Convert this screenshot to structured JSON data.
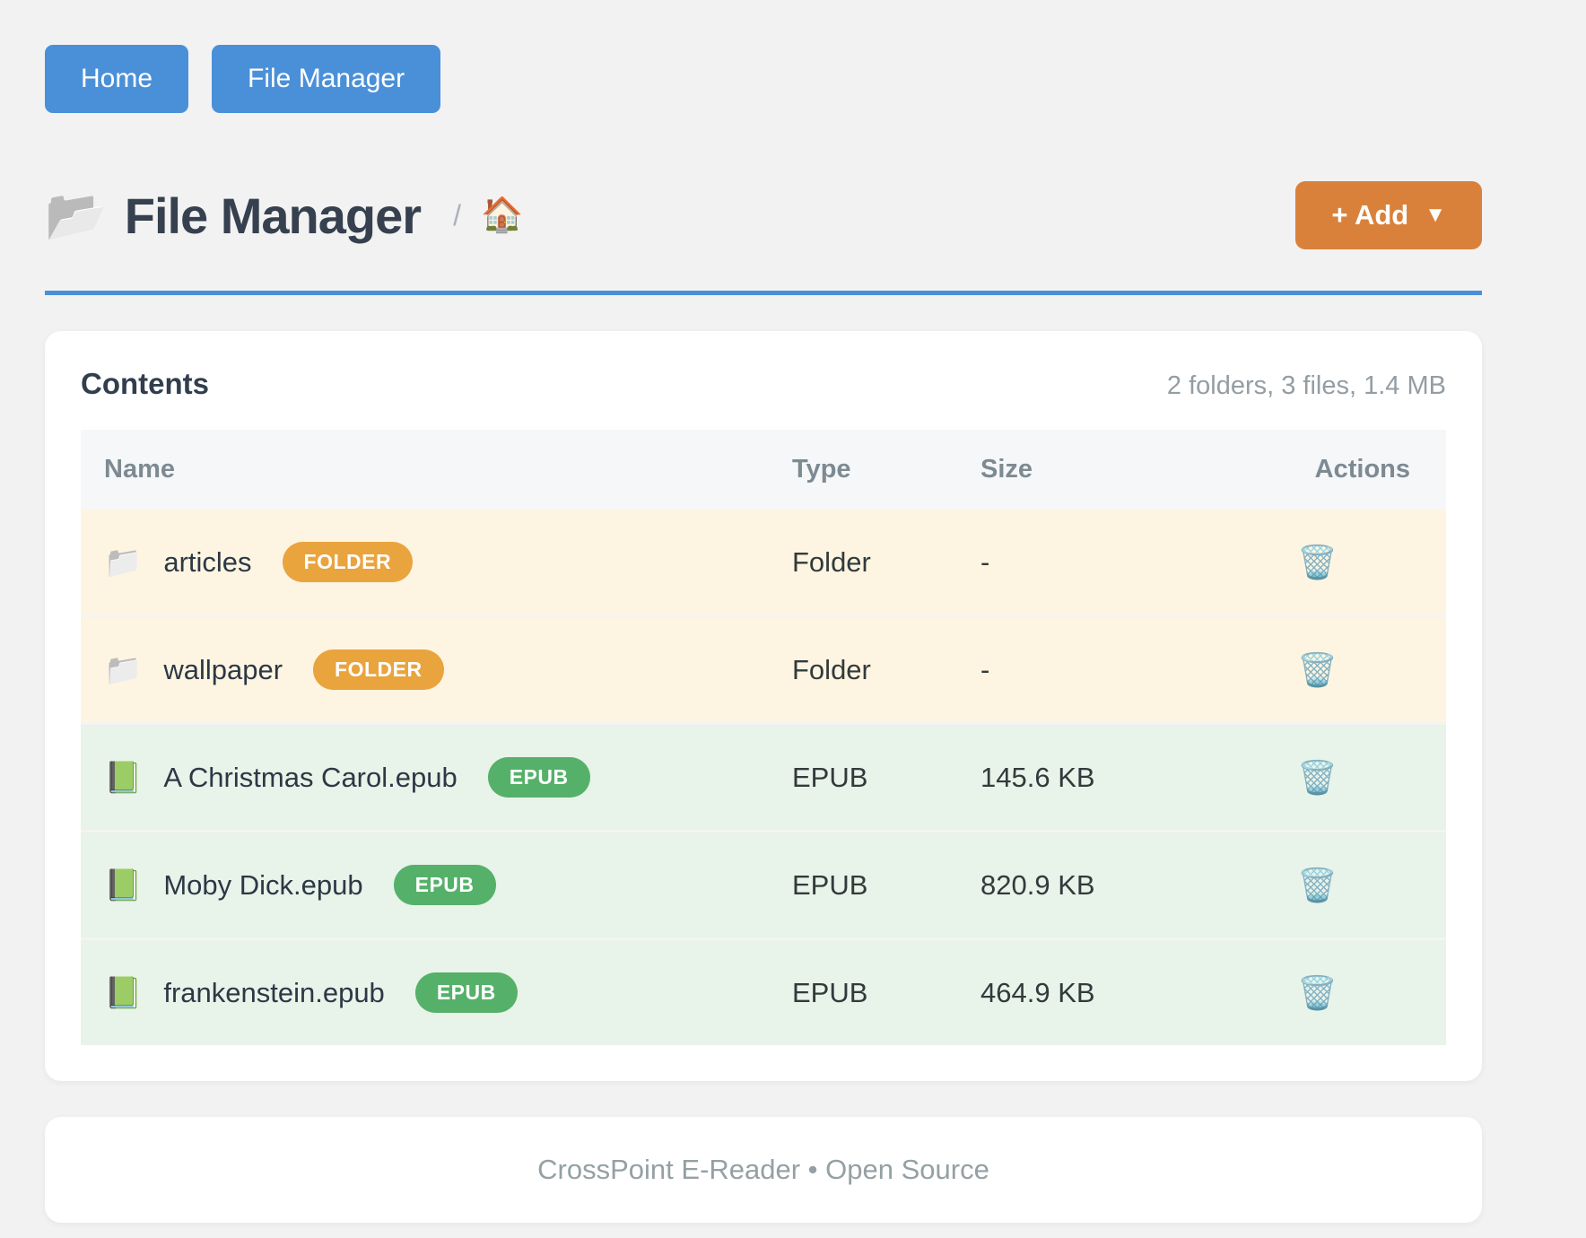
{
  "nav": {
    "home_label": "Home",
    "file_manager_label": "File Manager"
  },
  "header": {
    "title_icon": "📂",
    "title": "File Manager",
    "breadcrumb": {
      "separator": "/",
      "home_icon": "🏠"
    },
    "add_button": {
      "label": "+ Add",
      "caret": "▼"
    }
  },
  "contents": {
    "title": "Contents",
    "summary": "2 folders, 3 files, 1.4 MB",
    "columns": [
      "Name",
      "Type",
      "Size",
      "Actions"
    ],
    "action_icon": "🗑️",
    "rows": [
      {
        "icon": "📁",
        "name": "articles",
        "badge": "FOLDER",
        "kind": "folder",
        "type": "Folder",
        "size": "-"
      },
      {
        "icon": "📁",
        "name": "wallpaper",
        "badge": "FOLDER",
        "kind": "folder",
        "type": "Folder",
        "size": "-"
      },
      {
        "icon": "📗",
        "name": "A Christmas Carol.epub",
        "badge": "EPUB",
        "kind": "file",
        "type": "EPUB",
        "size": "145.6 KB"
      },
      {
        "icon": "📗",
        "name": "Moby Dick.epub",
        "badge": "EPUB",
        "kind": "file",
        "type": "EPUB",
        "size": "820.9 KB"
      },
      {
        "icon": "📗",
        "name": "frankenstein.epub",
        "badge": "EPUB",
        "kind": "file",
        "type": "EPUB",
        "size": "464.9 KB"
      }
    ]
  },
  "footer": {
    "text": "CrossPoint E-Reader • Open Source"
  },
  "colors": {
    "accent_blue": "#4a90d8",
    "accent_orange": "#d9813a",
    "badge_folder": "#e9a43e",
    "badge_epub": "#55b169",
    "row_folder_bg": "#fdf5e1",
    "row_file_bg": "#e8f3e9"
  }
}
